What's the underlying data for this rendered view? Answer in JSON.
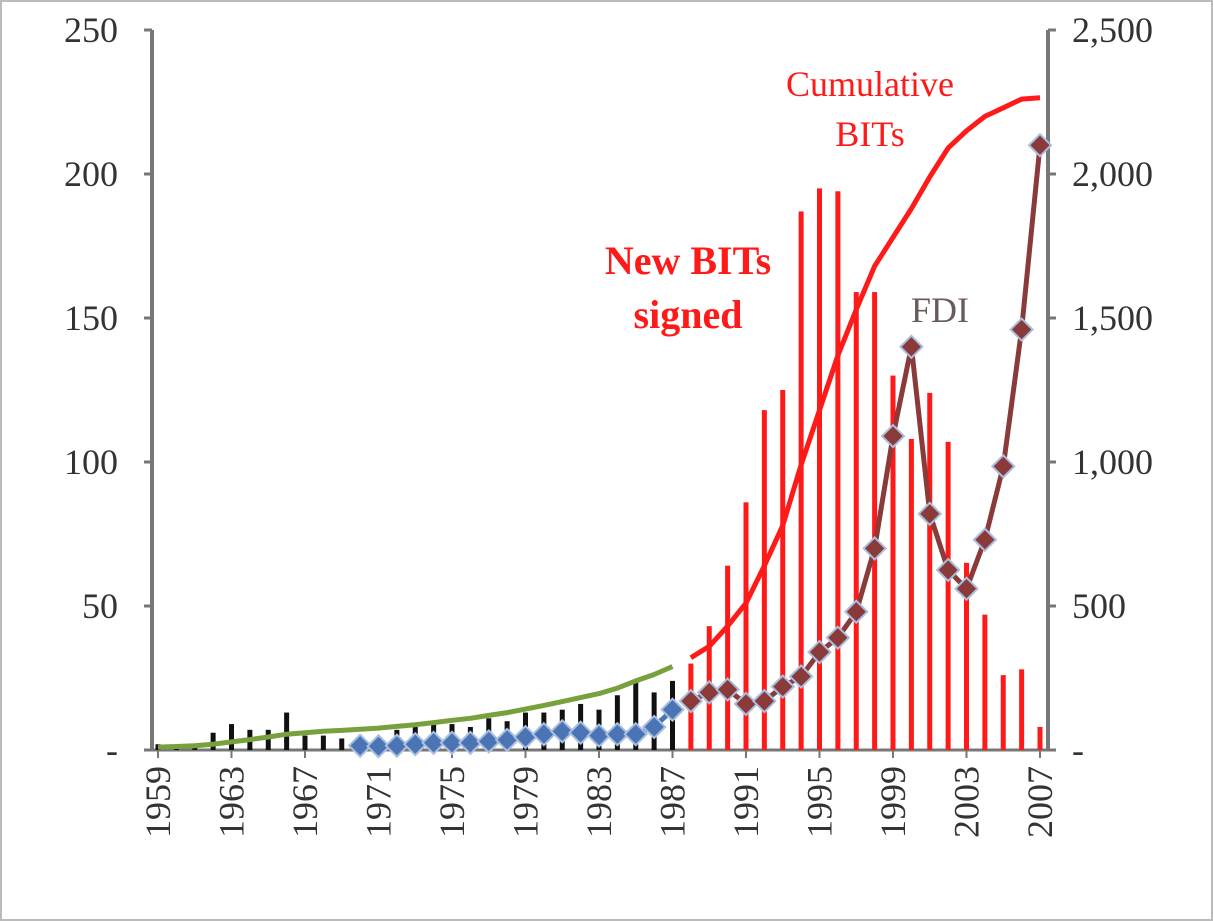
{
  "chart_data": {
    "type": "bar-line",
    "categories": [
      "1959",
      null,
      null,
      null,
      "1963",
      null,
      null,
      null,
      "1967",
      null,
      null,
      null,
      "1971",
      null,
      null,
      null,
      "1975",
      null,
      null,
      null,
      "1979",
      null,
      null,
      null,
      "1983",
      null,
      null,
      null,
      "1987",
      null,
      null,
      null,
      "1991",
      null,
      null,
      null,
      "1995",
      null,
      null,
      null,
      "1999",
      null,
      null,
      null,
      "2003",
      null,
      null,
      null,
      "2007"
    ],
    "ylim": [
      0,
      250
    ],
    "yticks": [
      {
        "value": 0,
        "label": "-"
      },
      50,
      100,
      150,
      200,
      250
    ],
    "y2lim": [
      0,
      2500
    ],
    "y2ticks": [
      {
        "value": 0,
        "label": "-"
      },
      500,
      {
        "value": 1000,
        "label": "1,000"
      },
      {
        "value": 1500,
        "label": "1,500"
      },
      {
        "value": 2000,
        "label": "2,000"
      },
      {
        "value": 2500,
        "label": "2,500"
      }
    ],
    "series": [
      {
        "kind": "bar",
        "color": "#111111",
        "values": [
          2,
          1,
          2,
          6,
          9,
          7,
          7,
          13,
          5,
          5,
          4,
          5,
          4,
          7,
          8,
          9,
          9,
          8,
          11,
          10,
          13,
          13,
          14,
          16,
          14,
          19,
          24,
          20,
          24,
          null,
          null,
          null,
          null,
          null,
          null,
          null,
          null,
          null,
          null,
          null,
          null,
          null,
          null,
          null,
          null,
          null,
          null,
          null,
          null
        ]
      },
      {
        "kind": "bar",
        "color": "#ff1a1a",
        "values": [
          null,
          null,
          null,
          null,
          null,
          null,
          null,
          null,
          null,
          null,
          null,
          null,
          null,
          null,
          null,
          null,
          null,
          null,
          null,
          null,
          null,
          null,
          null,
          null,
          null,
          null,
          null,
          null,
          null,
          30,
          43,
          64,
          86,
          118,
          125,
          187,
          195,
          194,
          159,
          159,
          130,
          108,
          124,
          107,
          65,
          47,
          26,
          28,
          8
        ]
      },
      {
        "kind": "line",
        "axis": "y2",
        "color": "#78a03c",
        "values": [
          10,
          12,
          15,
          20,
          28,
          36,
          45,
          55,
          60,
          65,
          68,
          72,
          76,
          82,
          88,
          95,
          103,
          110,
          120,
          130,
          142,
          155,
          168,
          182,
          196,
          215,
          240,
          262,
          290,
          null,
          null,
          null,
          null,
          null,
          null,
          null,
          null,
          null,
          null,
          null,
          null,
          null,
          null,
          null,
          null,
          null,
          null,
          null,
          null
        ]
      },
      {
        "kind": "line",
        "axis": "y2",
        "color": "#ff1a1a",
        "values": [
          null,
          null,
          null,
          null,
          null,
          null,
          null,
          null,
          null,
          null,
          null,
          null,
          null,
          null,
          null,
          null,
          null,
          null,
          null,
          null,
          null,
          null,
          null,
          null,
          null,
          null,
          null,
          null,
          null,
          320,
          360,
          430,
          510,
          640,
          780,
          990,
          1180,
          1370,
          1530,
          1680,
          1780,
          1880,
          1990,
          2090,
          2150,
          2200,
          2230,
          2260,
          2265
        ]
      },
      {
        "kind": "marker-line",
        "axis": "y2",
        "color": "#4a74b4",
        "values": [
          null,
          null,
          null,
          null,
          null,
          null,
          null,
          null,
          null,
          null,
          null,
          15,
          13,
          15,
          20,
          25,
          25,
          25,
          30,
          35,
          45,
          55,
          65,
          60,
          50,
          55,
          55,
          80,
          140,
          null,
          null,
          null,
          null,
          null,
          null,
          null,
          null,
          null,
          null,
          null,
          null,
          null,
          null,
          null,
          null,
          null,
          null,
          null,
          null
        ]
      },
      {
        "kind": "marker-line",
        "axis": "y2",
        "color": "#8b3a3a",
        "values": [
          null,
          null,
          null,
          null,
          null,
          null,
          null,
          null,
          null,
          null,
          null,
          null,
          null,
          null,
          null,
          null,
          null,
          null,
          null,
          null,
          null,
          null,
          null,
          null,
          null,
          null,
          null,
          null,
          null,
          170,
          200,
          210,
          160,
          170,
          220,
          255,
          340,
          390,
          480,
          700,
          1090,
          1400,
          820,
          625,
          560,
          730,
          985,
          1460,
          2100
        ]
      }
    ],
    "annotations": [
      {
        "lines": [
          "Cumulative",
          "BITs"
        ],
        "color": "#ff1a1a"
      },
      {
        "lines": [
          "New BITs",
          "signed"
        ],
        "color": "#ff1a1a"
      },
      {
        "lines": [
          "FDI"
        ],
        "color": "#6b5a5a"
      }
    ]
  }
}
